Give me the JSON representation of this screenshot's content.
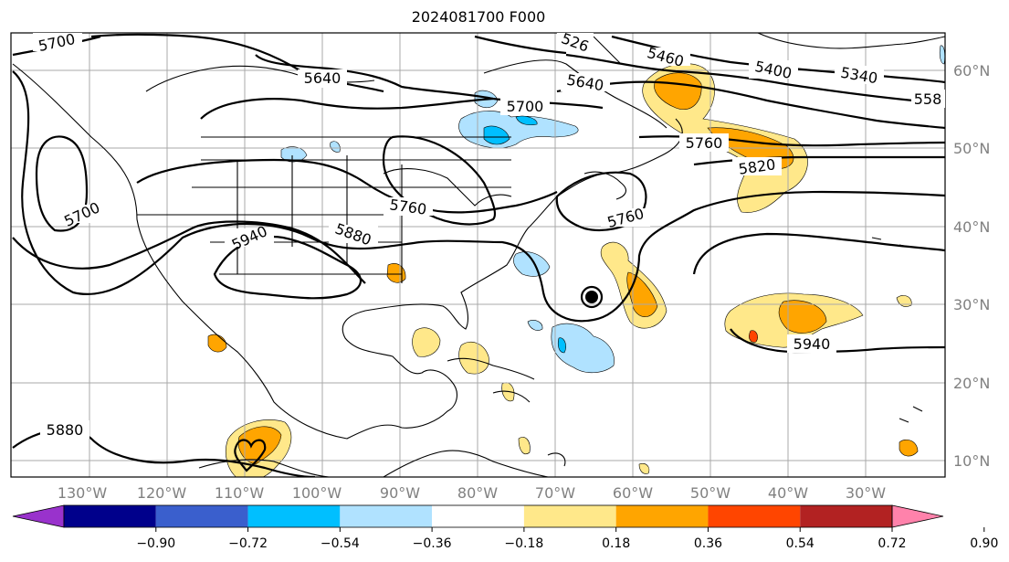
{
  "title": "2024081700 F000",
  "lon_labels": [
    "130°W",
    "120°W",
    "110°W",
    "100°W",
    "90°W",
    "80°W",
    "70°W",
    "60°W",
    "50°W",
    "40°W",
    "30°W"
  ],
  "lat_labels": [
    "60°N",
    "50°N",
    "40°N",
    "30°N",
    "20°N",
    "10°N"
  ],
  "contour_labels": {
    "c1": "5700",
    "c2": "5640",
    "c3": "5700",
    "c4": "5940",
    "c5": "5880",
    "c6": "5760",
    "c7": "5880",
    "c8": "5700",
    "c9": "5640",
    "c10": "5460",
    "c11": "5400",
    "c12": "5340",
    "c13": "558",
    "c14": "5760",
    "c15": "5820",
    "c16": "5760",
    "c17": "5940",
    "c18": "526"
  },
  "colorbar": {
    "ticks": [
      "−0.90",
      "−0.72",
      "−0.54",
      "−0.36",
      "−0.18",
      "0.18",
      "0.36",
      "0.54",
      "0.72",
      "0.90"
    ],
    "colors": [
      "#9932cc",
      "#00008b",
      "#3a5fcd",
      "#00bfff",
      "#b0e2ff",
      "#ffffff",
      "#ffe88a",
      "#ffa500",
      "#ff4500",
      "#b22222",
      "#ff82ab"
    ]
  }
}
